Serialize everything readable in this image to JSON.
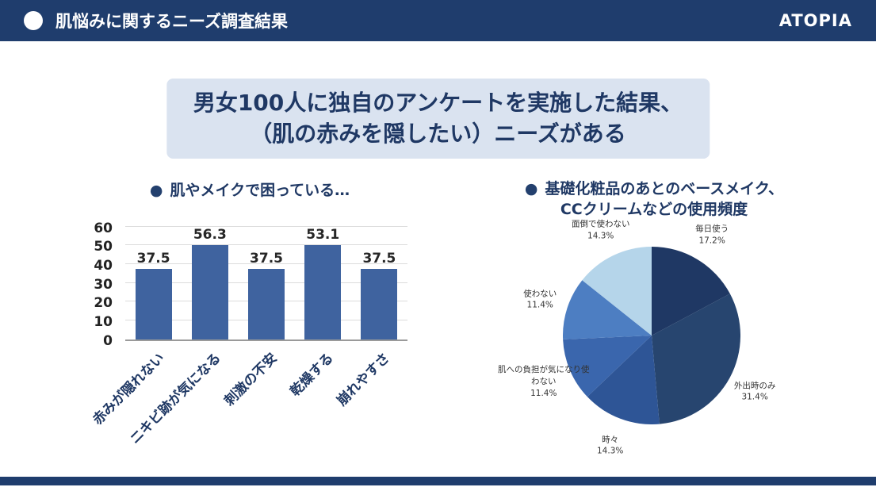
{
  "header": {
    "title": "肌悩みに関するニーズ調査結果",
    "brand": "ATOPIA"
  },
  "headline": {
    "line1": "男女100人に独自のアンケートを実施した結果、",
    "line2": "（肌の赤みを隠したい）ニーズがある"
  },
  "colors": {
    "navy": "#1f3d6d",
    "text_navy": "#1f3864",
    "headline_bg": "#dae3f0",
    "bar": "#3f639f"
  },
  "chart_data": [
    {
      "type": "bar",
      "bullet": "●",
      "title": "肌やメイクで困っている…",
      "categories": [
        "赤みが隠れない",
        "ニキビ跡が気になる",
        "刺激の不安",
        "乾燥する",
        "崩れやすさ"
      ],
      "values": [
        37.5,
        56.3,
        37.5,
        53.1,
        37.5
      ],
      "ylim": [
        0,
        60
      ],
      "ytick_step": 10,
      "bar_color": "#3f639f",
      "grid": "horizontal"
    },
    {
      "type": "pie",
      "bullet": "●",
      "title_line1": "基礎化粧品のあとのベースメイク、",
      "title_line2": "CCクリームなどの使用頻度",
      "start_angle_deg": -90,
      "direction": "clockwise",
      "slices": [
        {
          "label": "毎日使う",
          "pct": 17.2,
          "color": "#1f3864"
        },
        {
          "label": "外出時のみ",
          "pct": 31.4,
          "color": "#27456f"
        },
        {
          "label": "時々",
          "pct": 14.3,
          "color": "#2e5596"
        },
        {
          "label": "肌への負担が気になり使わない",
          "pct": 11.4,
          "color": "#3a66ad"
        },
        {
          "label": "使わない",
          "pct": 11.4,
          "color": "#4d7ec2"
        },
        {
          "label": "面倒で使わない",
          "pct": 14.3,
          "color": "#b5d5ea"
        }
      ]
    }
  ]
}
